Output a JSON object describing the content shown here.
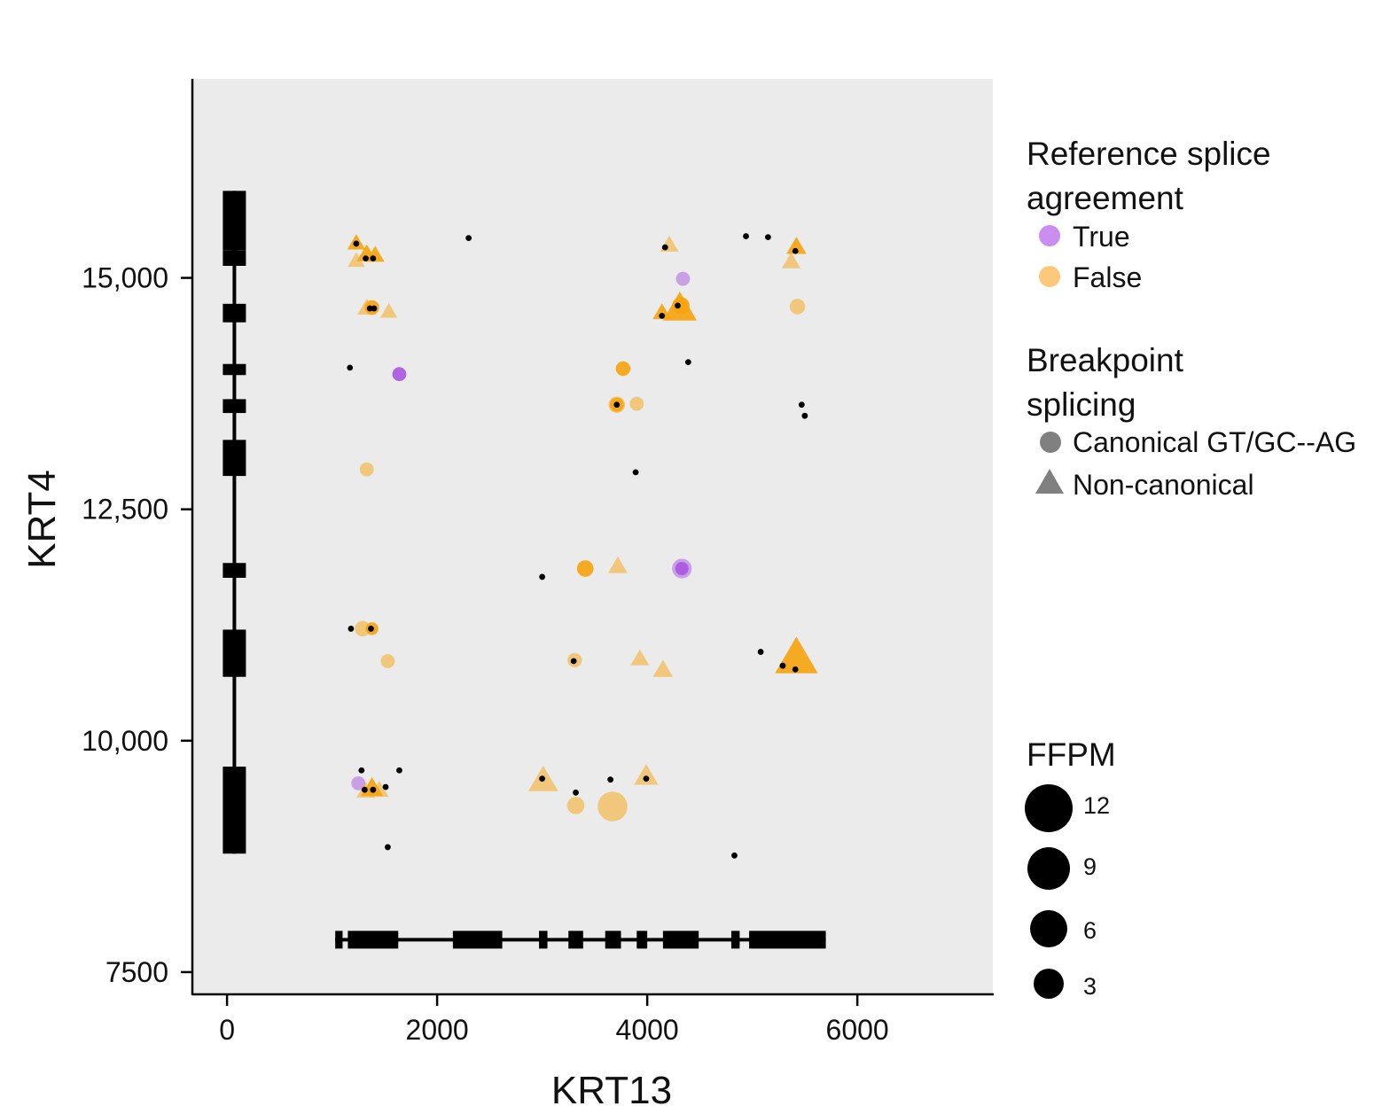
{
  "chart_data": {
    "type": "scatter",
    "xlabel": "KRT13",
    "ylabel": "KRT4",
    "xlim": [
      -330,
      7290
    ],
    "ylim": [
      7260,
      17150
    ],
    "xticks": [
      {
        "value": 0,
        "label": "0"
      },
      {
        "value": 2000,
        "label": "2000"
      },
      {
        "value": 4000,
        "label": "4000"
      },
      {
        "value": 6000,
        "label": "6000"
      }
    ],
    "yticks": [
      {
        "value": 7500,
        "label": "7500"
      },
      {
        "value": 10000,
        "label": "10,000"
      },
      {
        "value": 12500,
        "label": "12,500"
      },
      {
        "value": 15000,
        "label": "15,000"
      }
    ],
    "colors": {
      "panel": "#ebebeb",
      "true": "#a855e0",
      "false": "#f7a30c",
      "true_legend": "#c98ef0",
      "false_legend": "#fbc979",
      "dot": "#000000",
      "gene": "#000000",
      "shape_legend": "#808080"
    },
    "legend": {
      "color_title_line1": "Reference splice",
      "color_title_line2": "agreement",
      "color_items": [
        {
          "key": "true",
          "label": "True"
        },
        {
          "key": "false",
          "label": "False"
        }
      ],
      "shape_title_line1": "Breakpoint",
      "shape_title_line2": "splicing",
      "shape_items": [
        {
          "shape": "circle",
          "label": "Canonical GT/GC--AG"
        },
        {
          "shape": "triangle",
          "label": "Non-canonical"
        }
      ],
      "size_title": "FFPM",
      "size_items": [
        {
          "value": 12,
          "label": "12"
        },
        {
          "value": 9,
          "label": "9"
        },
        {
          "value": 6,
          "label": "6"
        },
        {
          "value": 3,
          "label": "3"
        }
      ]
    },
    "gene_krt4": {
      "x": 70,
      "y_start": 8780,
      "y_end": 15940,
      "exons": [
        [
          8780,
          9720
        ],
        [
          10690,
          11200
        ],
        [
          11760,
          11920
        ],
        [
          12860,
          13250
        ],
        [
          13540,
          13690
        ],
        [
          13950,
          14070
        ],
        [
          14520,
          14720
        ],
        [
          15130,
          15300
        ],
        [
          15300,
          15940
        ]
      ]
    },
    "gene_krt13": {
      "y": 7850,
      "x_start": 1030,
      "x_end": 5700,
      "exons": [
        [
          1030,
          1100
        ],
        [
          1150,
          1630
        ],
        [
          2150,
          2620
        ],
        [
          2970,
          3050
        ],
        [
          3250,
          3390
        ],
        [
          3600,
          3750
        ],
        [
          3900,
          4000
        ],
        [
          4150,
          4490
        ],
        [
          4800,
          4880
        ],
        [
          4970,
          5700
        ]
      ]
    },
    "points": [
      {
        "x": 1230,
        "y": 15370,
        "shape": "triangle",
        "agree": false,
        "ffpm": 0.7,
        "strong": true
      },
      {
        "x": 1230,
        "y": 15180,
        "shape": "triangle",
        "agree": false,
        "ffpm": 0.6,
        "strong": false
      },
      {
        "x": 1330,
        "y": 15250,
        "shape": "triangle",
        "agree": false,
        "ffpm": 1.0,
        "strong": true
      },
      {
        "x": 1410,
        "y": 15240,
        "shape": "triangle",
        "agree": false,
        "ffpm": 0.8,
        "strong": true
      },
      {
        "x": 1330,
        "y": 14670,
        "shape": "triangle",
        "agree": false,
        "ffpm": 0.8,
        "strong": false
      },
      {
        "x": 1380,
        "y": 14680,
        "shape": "circle",
        "agree": false,
        "ffpm": 0.8,
        "strong": true
      },
      {
        "x": 1540,
        "y": 14630,
        "shape": "triangle",
        "agree": false,
        "ffpm": 0.6,
        "strong": false
      },
      {
        "x": 1640,
        "y": 13960,
        "shape": "circle",
        "agree": true,
        "ffpm": 0.7,
        "strong": true
      },
      {
        "x": 1330,
        "y": 12930,
        "shape": "circle",
        "agree": false,
        "ffpm": 0.7,
        "strong": false
      },
      {
        "x": 1290,
        "y": 11210,
        "shape": "circle",
        "agree": false,
        "ffpm": 1.0,
        "strong": false
      },
      {
        "x": 1380,
        "y": 11210,
        "shape": "circle",
        "agree": false,
        "ffpm": 0.5,
        "strong": true
      },
      {
        "x": 1530,
        "y": 10860,
        "shape": "circle",
        "agree": false,
        "ffpm": 0.7,
        "strong": false
      },
      {
        "x": 1250,
        "y": 9540,
        "shape": "circle",
        "agree": true,
        "ffpm": 0.7,
        "strong": false
      },
      {
        "x": 1380,
        "y": 9480,
        "shape": "triangle",
        "agree": false,
        "ffpm": 1.4,
        "strong": true
      },
      {
        "x": 1320,
        "y": 9450,
        "shape": "triangle",
        "agree": false,
        "ffpm": 0.8,
        "strong": false
      },
      {
        "x": 1450,
        "y": 9460,
        "shape": "triangle",
        "agree": false,
        "ffpm": 0.8,
        "strong": false
      },
      {
        "x": 3010,
        "y": 9560,
        "shape": "triangle",
        "agree": false,
        "ffpm": 3.2,
        "strong": false
      },
      {
        "x": 3320,
        "y": 9300,
        "shape": "circle",
        "agree": false,
        "ffpm": 1.4,
        "strong": false
      },
      {
        "x": 3670,
        "y": 9290,
        "shape": "circle",
        "agree": false,
        "ffpm": 6.0,
        "strong": false
      },
      {
        "x": 3990,
        "y": 9610,
        "shape": "triangle",
        "agree": false,
        "ffpm": 1.8,
        "strong": false
      },
      {
        "x": 3310,
        "y": 10870,
        "shape": "circle",
        "agree": false,
        "ffpm": 0.8,
        "strong": false
      },
      {
        "x": 3930,
        "y": 10880,
        "shape": "triangle",
        "agree": false,
        "ffpm": 0.8,
        "strong": false
      },
      {
        "x": 4150,
        "y": 10760,
        "shape": "triangle",
        "agree": false,
        "ffpm": 1.0,
        "strong": false
      },
      {
        "x": 3410,
        "y": 11860,
        "shape": "circle",
        "agree": false,
        "ffpm": 1.2,
        "strong": true
      },
      {
        "x": 3720,
        "y": 11880,
        "shape": "triangle",
        "agree": false,
        "ffpm": 0.9,
        "strong": false
      },
      {
        "x": 4330,
        "y": 11860,
        "shape": "circle",
        "agree": true,
        "ffpm": 2.0,
        "strong": false
      },
      {
        "x": 4330,
        "y": 11860,
        "shape": "circle",
        "agree": true,
        "ffpm": 0.6,
        "strong": true
      },
      {
        "x": 3710,
        "y": 13630,
        "shape": "circle",
        "agree": false,
        "ffpm": 1.2,
        "strong": false
      },
      {
        "x": 3710,
        "y": 13630,
        "shape": "circle",
        "agree": false,
        "ffpm": 0.7,
        "strong": true
      },
      {
        "x": 3900,
        "y": 13640,
        "shape": "circle",
        "agree": false,
        "ffpm": 0.7,
        "strong": false
      },
      {
        "x": 3770,
        "y": 14020,
        "shape": "circle",
        "agree": false,
        "ffpm": 0.8,
        "strong": true
      },
      {
        "x": 4140,
        "y": 14620,
        "shape": "triangle",
        "agree": false,
        "ffpm": 0.8,
        "strong": true
      },
      {
        "x": 4310,
        "y": 14660,
        "shape": "triangle",
        "agree": false,
        "ffpm": 4.5,
        "strong": true
      },
      {
        "x": 4320,
        "y": 14700,
        "shape": "circle",
        "agree": false,
        "ffpm": 1.4,
        "strong": true
      },
      {
        "x": 4340,
        "y": 14990,
        "shape": "circle",
        "agree": true,
        "ffpm": 0.7,
        "strong": false
      },
      {
        "x": 4210,
        "y": 15350,
        "shape": "triangle",
        "agree": false,
        "ffpm": 0.8,
        "strong": false
      },
      {
        "x": 5420,
        "y": 15330,
        "shape": "triangle",
        "agree": false,
        "ffpm": 1.0,
        "strong": true
      },
      {
        "x": 5370,
        "y": 15170,
        "shape": "triangle",
        "agree": false,
        "ffpm": 0.8,
        "strong": false
      },
      {
        "x": 5430,
        "y": 14690,
        "shape": "circle",
        "agree": false,
        "ffpm": 1.0,
        "strong": false
      },
      {
        "x": 5420,
        "y": 10880,
        "shape": "triangle",
        "agree": false,
        "ffpm": 8.0,
        "strong": true
      }
    ],
    "dots": [
      [
        1230,
        15370
      ],
      [
        1320,
        15210
      ],
      [
        1390,
        15210
      ],
      [
        1360,
        14670
      ],
      [
        1400,
        14670
      ],
      [
        1170,
        14030
      ],
      [
        2300,
        15430
      ],
      [
        4170,
        15330
      ],
      [
        4940,
        15450
      ],
      [
        5150,
        15440
      ],
      [
        5410,
        15290
      ],
      [
        4290,
        14700
      ],
      [
        4140,
        14590
      ],
      [
        4390,
        14090
      ],
      [
        3710,
        13630
      ],
      [
        5470,
        13630
      ],
      [
        5500,
        13510
      ],
      [
        3890,
        12900
      ],
      [
        3000,
        11770
      ],
      [
        1180,
        11210
      ],
      [
        1370,
        11210
      ],
      [
        3300,
        10860
      ],
      [
        5080,
        10960
      ],
      [
        5290,
        10810
      ],
      [
        5410,
        10770
      ],
      [
        1280,
        9680
      ],
      [
        1310,
        9470
      ],
      [
        1390,
        9470
      ],
      [
        1510,
        9500
      ],
      [
        1640,
        9680
      ],
      [
        1530,
        8850
      ],
      [
        3000,
        9590
      ],
      [
        3320,
        9440
      ],
      [
        3650,
        9580
      ],
      [
        3990,
        9590
      ],
      [
        4830,
        8760
      ]
    ]
  }
}
